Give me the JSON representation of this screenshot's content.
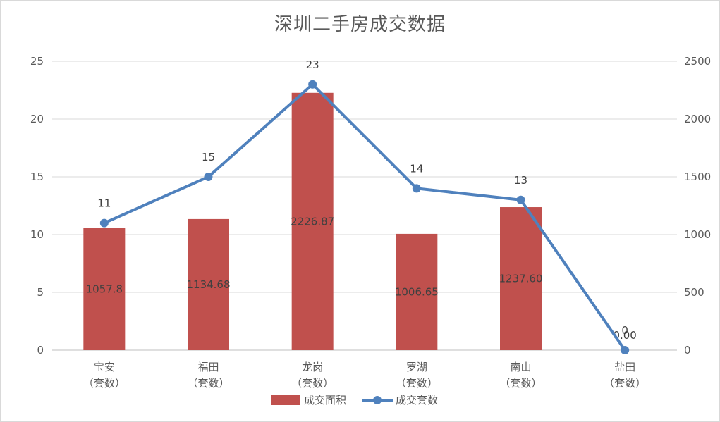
{
  "chart_data": {
    "type": "bar",
    "title": "深圳二手房成交数据",
    "categories": [
      [
        "宝安",
        "（套数）"
      ],
      [
        "福田",
        "（套数）"
      ],
      [
        "龙岗",
        "（套数）"
      ],
      [
        "罗湖",
        "（套数）"
      ],
      [
        "南山",
        "（套数）"
      ],
      [
        "盐田",
        "（套数）"
      ]
    ],
    "left_axis": {
      "ylim": [
        0,
        25
      ],
      "ticks": [
        "0",
        "5",
        "10",
        "15",
        "20",
        "25"
      ]
    },
    "right_axis": {
      "ylim": [
        0,
        2500
      ],
      "ticks": [
        "0",
        "500",
        "1000",
        "1500",
        "2000",
        "2500"
      ]
    },
    "series": [
      {
        "name": "成交面积",
        "kind": "bar",
        "axis": "left",
        "color": "#c0504d",
        "values": [
          10.578,
          11.3468,
          22.2687,
          10.0665,
          12.376,
          0
        ],
        "labels": [
          "1057.8",
          "1134.68",
          "2226.87",
          "1006.65",
          "1237.60",
          "0.00"
        ]
      },
      {
        "name": "成交套数",
        "kind": "line",
        "axis": "right",
        "color": "#4f81bd",
        "values": [
          1100,
          1500,
          2300,
          1400,
          1300,
          0
        ],
        "labels": [
          "11",
          "15",
          "23",
          "14",
          "13",
          "0"
        ]
      }
    ],
    "grid": true,
    "legend_position": "bottom"
  }
}
